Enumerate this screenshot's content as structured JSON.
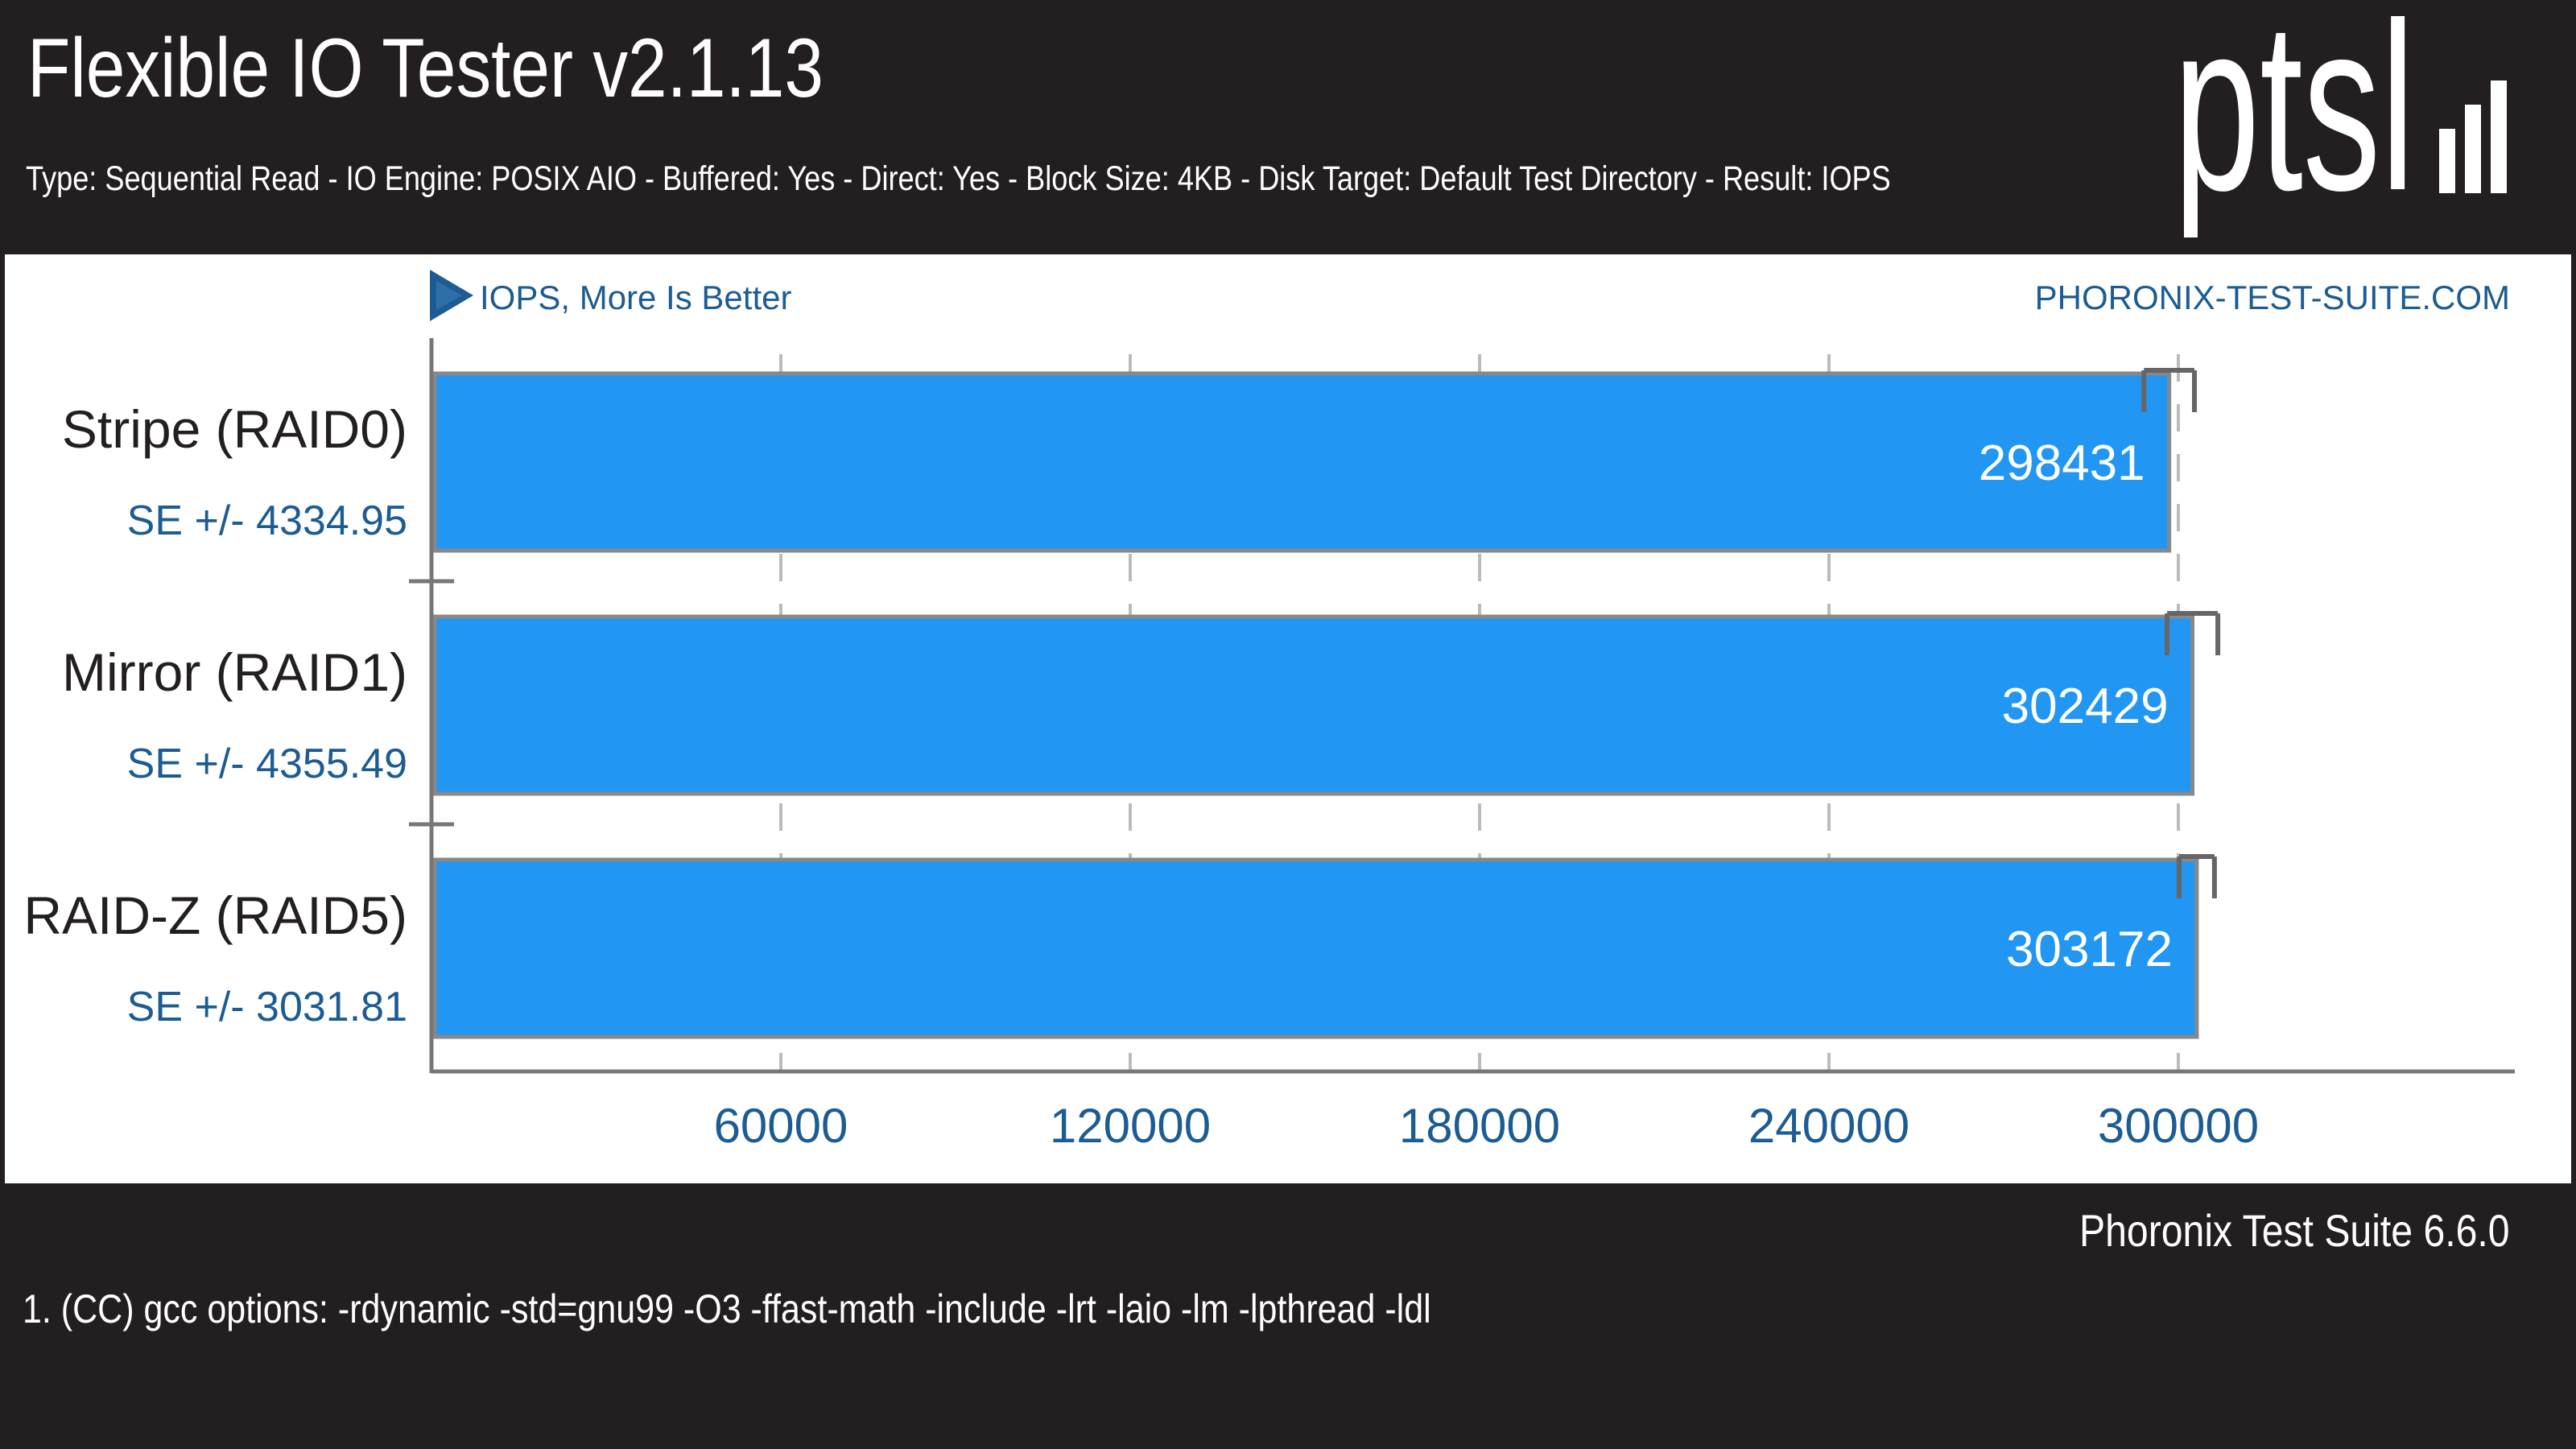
{
  "header": {
    "title": "Flexible IO Tester v2.1.13",
    "subtitle": "Type: Sequential Read - IO Engine: POSIX AIO - Buffered: Yes - Direct: Yes - Block Size: 4KB - Disk Target: Default Test Directory - Result: IOPS",
    "logo_text": "ptsl"
  },
  "chart_meta": {
    "direction_label": "IOPS, More Is Better",
    "site_label": "PHORONIX-TEST-SUITE.COM"
  },
  "chart_data": {
    "type": "bar",
    "orientation": "horizontal",
    "categories": [
      "Stripe (RAID0)",
      "Mirror (RAID1)",
      "RAID-Z (RAID5)"
    ],
    "values": [
      298431,
      302429,
      303172
    ],
    "value_labels": [
      "298431",
      "302429",
      "303172"
    ],
    "errors": [
      4334.95,
      4355.49,
      3031.81
    ],
    "error_labels": [
      "SE +/- 4334.95",
      "SE +/- 4355.49",
      "SE +/- 3031.81"
    ],
    "xticks": [
      60000,
      120000,
      180000,
      240000,
      300000
    ],
    "xtick_labels": [
      "60000",
      "120000",
      "180000",
      "240000",
      "300000"
    ],
    "xlim": [
      0,
      360000
    ],
    "title": "Flexible IO Tester v2.1.13",
    "xlabel": "",
    "ylabel": "",
    "grid": true,
    "colors": {
      "bar": "#2196f3",
      "bar_border": "#888888",
      "grid": "#bbbbbb",
      "axis": "#777777",
      "tick_text": "#1c5c93",
      "category_text": "#231f20",
      "se_text": "#1c5c93",
      "value_text": "#ffffff",
      "error_bar": "#666666"
    }
  },
  "footer": {
    "credit": "Phoronix Test Suite 6.6.0",
    "note": "1. (CC) gcc options: -rdynamic -std=gnu99 -O3 -ffast-math -include -lrt -laio -lm -lpthread -ldl"
  }
}
